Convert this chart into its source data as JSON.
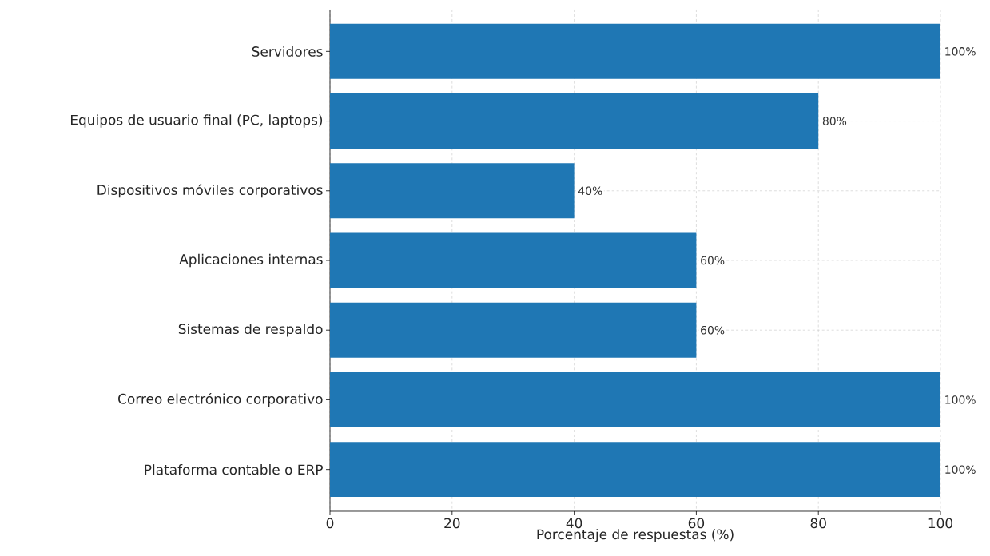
{
  "chart_data": {
    "type": "bar",
    "orientation": "horizontal",
    "xlabel": "Porcentaje de respuestas (%)",
    "categories": [
      "Servidores",
      "Equipos de usuario final (PC, laptops)",
      "Dispositivos móviles corporativos",
      "Aplicaciones internas",
      "Sistemas de respaldo",
      "Correo electrónico corporativo",
      "Plataforma contable o ERP"
    ],
    "values": [
      100,
      80,
      40,
      60,
      60,
      100,
      100
    ],
    "value_labels": [
      "100%",
      "80%",
      "40%",
      "60%",
      "60%",
      "100%",
      "100%"
    ],
    "color": "#1f77b4",
    "xlim": [
      0,
      100
    ],
    "xticks": [
      0,
      20,
      40,
      60,
      80,
      100
    ],
    "grid": true
  }
}
